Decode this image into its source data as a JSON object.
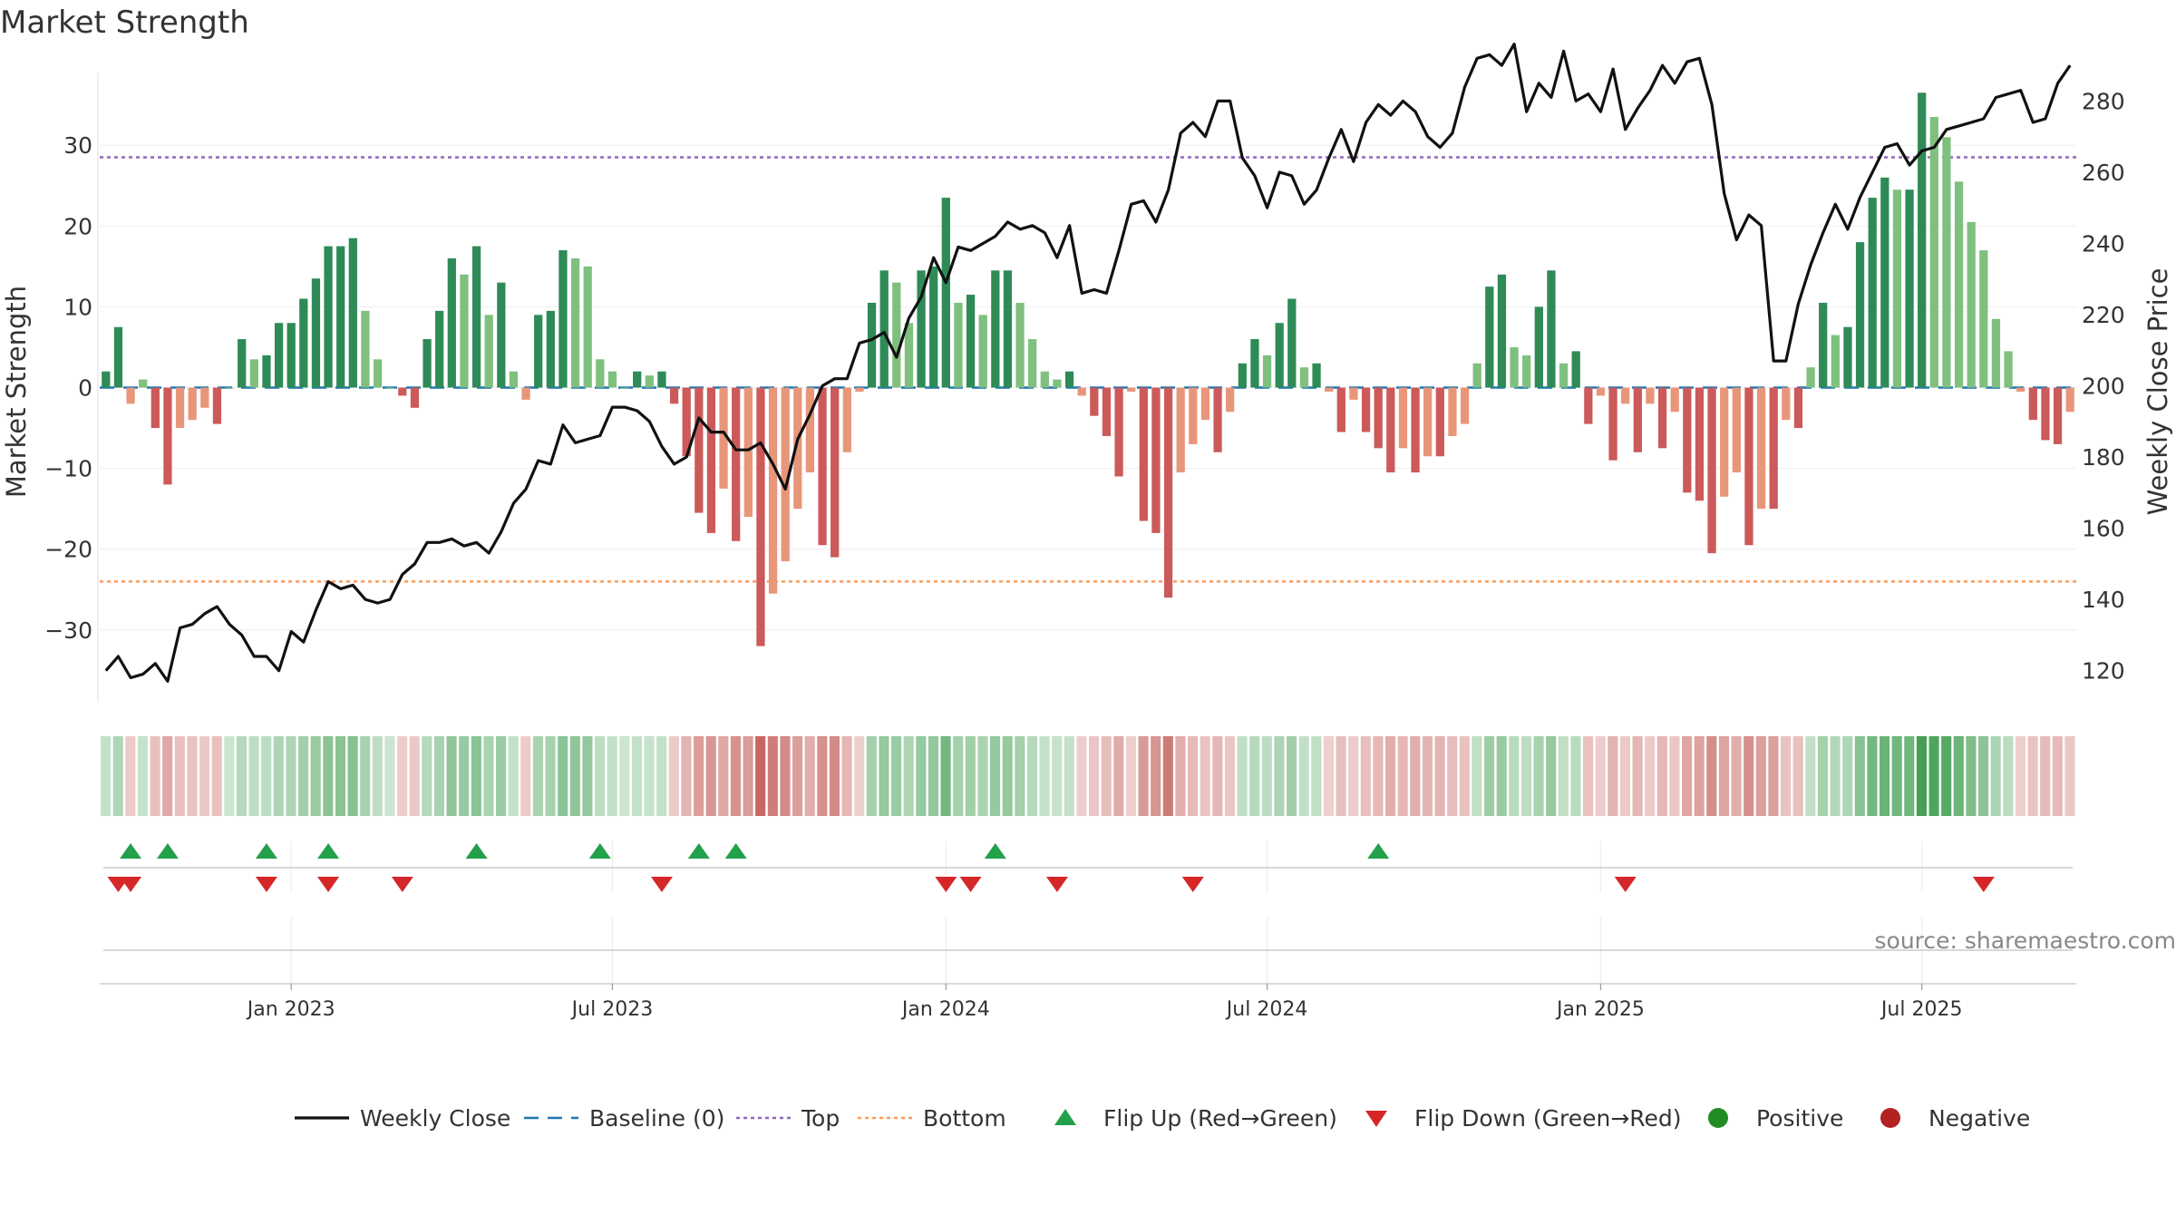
{
  "chart_data": {
    "type": "bar+line",
    "title": "Market Strength",
    "ylabel_left": "Market Strength",
    "ylabel_right": "Weekly Close Price",
    "yticks_left": [
      "30",
      "20",
      "10",
      "0",
      "−10",
      "−20",
      "−30"
    ],
    "yticks_left_values": [
      30,
      20,
      10,
      0,
      -10,
      -20,
      -30
    ],
    "ylim_left": [
      -39,
      39
    ],
    "yticks_right": [
      "120",
      "140",
      "160",
      "180",
      "200",
      "220",
      "240",
      "260",
      "280"
    ],
    "yticks_right_values": [
      120,
      140,
      160,
      180,
      200,
      220,
      240,
      260,
      280
    ],
    "ylim_right": [
      111,
      288
    ],
    "x_tick_labels": [
      "Jan 2023",
      "Jul 2023",
      "Jan 2024",
      "Jul 2024",
      "Jan 2025",
      "Jul 2025"
    ],
    "x_tick_weeks": [
      15,
      41,
      68,
      94,
      121,
      147
    ],
    "weeks": 160,
    "top_level": 28.5,
    "bottom_level": -24,
    "baseline": 0,
    "strength": [
      2,
      7.5,
      -2,
      1,
      -5,
      -12,
      -5,
      -4,
      -2.5,
      -4.5,
      0,
      6,
      3.5,
      4,
      8,
      8,
      11,
      13.5,
      17.5,
      17.5,
      18.5,
      9.5,
      3.5,
      0,
      -1,
      -2.5,
      6,
      9.5,
      16,
      14,
      17.5,
      9,
      13,
      2,
      -1.5,
      9,
      9.5,
      17,
      16,
      15,
      3.5,
      2,
      0,
      2,
      1.5,
      2,
      -2,
      -8.5,
      -15.5,
      -18,
      -12.5,
      -19,
      -16,
      -32,
      -25.5,
      -21.5,
      -15,
      -10.5,
      -19.5,
      -21,
      -8,
      -0.5,
      10.5,
      14.5,
      13,
      8,
      14.5,
      15,
      23.5,
      10.5,
      11.5,
      9,
      14.5,
      14.5,
      10.5,
      6,
      2,
      1,
      2,
      -1,
      -3.5,
      -6,
      -11,
      -0.5,
      -16.5,
      -18,
      -26,
      -10.5,
      -7,
      -4,
      -8,
      -3,
      3,
      6,
      4,
      8,
      11,
      2.5,
      3,
      -0.5,
      -5.5,
      -1.5,
      -5.5,
      -7.5,
      -10.5,
      -7.5,
      -10.5,
      -8.5,
      -8.5,
      -6,
      -4.5,
      3,
      12.5,
      14,
      5,
      4,
      10,
      14.5,
      3,
      4.5,
      -4.5,
      -1,
      -9,
      -2,
      -8,
      -2,
      -7.5,
      -3,
      -13,
      -14,
      -20.5,
      -13.5,
      -10.5,
      -19.5,
      -15,
      -15,
      -4,
      -5,
      2.5,
      10.5,
      6.5,
      7.5,
      18,
      23.5,
      26,
      24.5,
      24.5,
      36.5,
      33.5,
      31,
      25.5,
      20.5,
      17,
      8.5,
      4.5,
      -0.5,
      -4,
      -6.5,
      -7,
      -3
    ],
    "close": [
      120,
      124,
      118,
      119,
      122,
      117,
      132,
      133,
      136,
      138,
      133,
      130,
      124,
      124,
      120,
      131,
      128,
      137,
      145,
      143,
      144,
      140,
      139,
      140,
      147,
      150,
      156,
      156,
      157,
      155,
      156,
      153,
      159,
      167,
      171,
      179,
      178,
      189,
      184,
      185,
      186,
      194,
      194,
      193,
      190,
      183,
      178,
      180,
      191,
      187,
      187,
      182,
      182,
      184,
      178,
      171,
      185,
      192,
      200,
      202,
      202,
      212,
      213,
      215,
      208,
      219,
      225,
      236,
      229,
      239,
      238,
      240,
      242,
      246,
      244,
      245,
      243,
      236,
      245,
      226,
      227,
      226,
      238,
      251,
      252,
      246,
      255,
      271,
      274,
      270,
      280,
      280,
      264,
      259,
      250,
      260,
      259,
      251,
      255,
      264,
      272,
      263,
      274,
      279,
      276,
      280,
      277,
      270,
      267,
      271,
      284,
      292,
      293,
      290,
      296,
      277,
      285,
      281,
      294,
      280,
      282,
      277,
      289,
      272,
      278,
      283,
      290,
      285,
      291,
      292,
      279,
      254,
      241,
      248,
      245,
      207,
      207,
      223,
      234,
      243,
      251,
      244,
      253,
      260,
      267,
      268,
      262,
      266,
      267,
      272,
      273,
      274,
      275,
      281,
      282,
      283,
      274,
      275,
      285,
      290
    ],
    "flip_up_weeks": [
      2,
      5,
      13,
      18,
      30,
      40,
      48,
      51,
      72,
      103
    ],
    "flip_down_weeks": [
      1,
      2,
      13,
      18,
      24,
      45,
      68,
      70,
      77,
      88,
      123,
      152
    ],
    "legend": [
      {
        "label": "Weekly Close",
        "kind": "line",
        "color": "#111111"
      },
      {
        "label": "Baseline (0)",
        "kind": "dash",
        "color": "#1f77b4"
      },
      {
        "label": "Top",
        "kind": "dot",
        "color": "#9467bd"
      },
      {
        "label": "Bottom",
        "kind": "dot",
        "color": "#ff9a57"
      },
      {
        "label": "Flip Up (Red→Green)",
        "kind": "tri-up",
        "color": "#22a04a"
      },
      {
        "label": "Flip Down (Green→Red)",
        "kind": "tri-down",
        "color": "#d62728"
      },
      {
        "label": "Positive",
        "kind": "circle",
        "color": "#228b22"
      },
      {
        "label": "Negative",
        "kind": "circle",
        "color": "#b22222"
      }
    ],
    "source": "source: sharemaestro.com"
  },
  "colors": {
    "green_dark": "#2e8b57",
    "green_light": "#7fc07f",
    "red_dark": "#cc5a5a",
    "red_light": "#e8967a",
    "heat_green": "#45a055",
    "heat_red": "#c25a55"
  }
}
